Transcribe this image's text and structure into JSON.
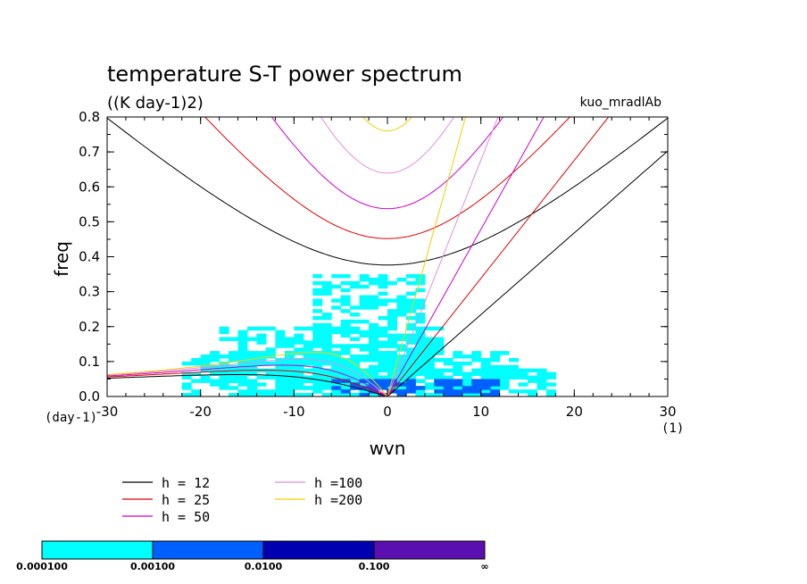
{
  "chart_data": {
    "type": "heatmap",
    "title": "temperature S-T power spectrum",
    "subtitle": "((K day-1)2)",
    "run_label": "kuo_mradlAb",
    "xlabel": "wvn",
    "ylabel": "freq",
    "xunit_label": "(1)",
    "yunit_label": "(day-1)",
    "xlim": [
      -30,
      30
    ],
    "ylim": [
      0,
      0.8
    ],
    "xticks": [
      -30,
      -20,
      -10,
      0,
      10,
      20,
      30
    ],
    "yticks": [
      0.0,
      0.1,
      0.2,
      0.3,
      0.4,
      0.5,
      0.6,
      0.7,
      0.8
    ],
    "xtick_labels": [
      "-30",
      "-20",
      "-10",
      "0",
      "10",
      "20",
      "30"
    ],
    "ytick_labels": [
      "0.0",
      "0.1",
      "0.2",
      "0.3",
      "0.4",
      "0.5",
      "0.6",
      "0.7",
      "0.8"
    ],
    "grid": false,
    "dispersion_curves": [
      {
        "name": "h = 12",
        "h": 12,
        "color": "#000000"
      },
      {
        "name": "h = 25",
        "h": 25,
        "color": "#e00000"
      },
      {
        "name": "h = 50",
        "h": 50,
        "color": "#cc00cc"
      },
      {
        "name": "h =100",
        "h": 100,
        "color": "#e090e0"
      },
      {
        "name": "h =200",
        "h": 200,
        "color": "#f0d000"
      }
    ],
    "color_scale": {
      "levels": [
        "0.000100",
        "0.00100",
        "0.0100",
        "0.100",
        "∞"
      ],
      "colors": [
        "#00ffff",
        "#0060ff",
        "#0000b0",
        "#5a10b0"
      ]
    },
    "power_regions": [
      {
        "x0": -22,
        "x1": 14,
        "f0": 0.0,
        "f1": 0.12,
        "bin": 0
      },
      {
        "x0": -18,
        "x1": 6,
        "f0": 0.02,
        "f1": 0.2,
        "bin": 0
      },
      {
        "x0": -12,
        "x1": 18,
        "f0": 0.0,
        "f1": 0.08,
        "bin": 0
      },
      {
        "x0": -8,
        "x1": 4,
        "f0": 0.1,
        "f1": 0.35,
        "bin": 0
      },
      {
        "x0": -3,
        "x1": 12,
        "f0": 0.0,
        "f1": 0.05,
        "bin": 1
      },
      {
        "x0": -6,
        "x1": 2,
        "f0": 0.01,
        "f1": 0.05,
        "bin": 1
      }
    ]
  }
}
